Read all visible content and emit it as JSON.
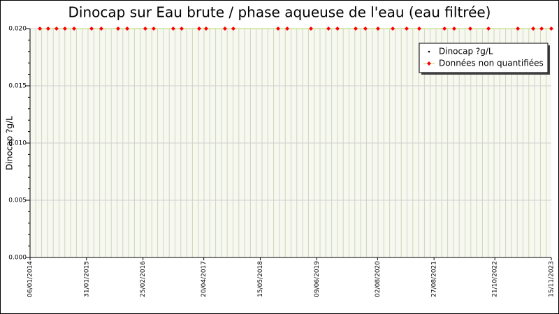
{
  "chart_data": {
    "type": "line",
    "title": "Dinocap sur Eau brute / phase aqueuse de l'eau (eau filtrée)",
    "y_label": "Dinocap ?g/L",
    "x": [
      "15/03/2014",
      "11/05/2014",
      "08/07/2014",
      "04/09/2014",
      "06/11/2014",
      "07/03/2015",
      "13/05/2015",
      "06/09/2015",
      "08/11/2015",
      "12/03/2016",
      "09/05/2016",
      "21/09/2016",
      "18/11/2016",
      "19/03/2017",
      "06/05/2017",
      "13/09/2017",
      "10/11/2017",
      "15/09/2018",
      "17/11/2018",
      "30/04/2019",
      "29/08/2019",
      "30/10/2019",
      "04/03/2020",
      "10/05/2020",
      "05/08/2020",
      "15/11/2020",
      "19/02/2021",
      "17/05/2021",
      "07/11/2021",
      "13/01/2022",
      "04/05/2022",
      "07/09/2022",
      "29/03/2023",
      "13/07/2023",
      "09/09/2023",
      "15/11/2023"
    ],
    "series": [
      {
        "name": "Dinocap ?g/L",
        "color": "#000000",
        "values": [
          null,
          null,
          null,
          null,
          null,
          null,
          null,
          null,
          null,
          null,
          null,
          null,
          null,
          null,
          null,
          null,
          null,
          null,
          null,
          null,
          null,
          null,
          null,
          null,
          null,
          null,
          null,
          null,
          null,
          null,
          null,
          null,
          null,
          null,
          null,
          null
        ]
      },
      {
        "name": "Données non quantifiées",
        "color": "#ff0000",
        "line_color": "#b5d96b",
        "values": [
          0.02,
          0.02,
          0.02,
          0.02,
          0.02,
          0.02,
          0.02,
          0.02,
          0.02,
          0.02,
          0.02,
          0.02,
          0.02,
          0.02,
          0.02,
          0.02,
          0.02,
          0.02,
          0.02,
          0.02,
          0.02,
          0.02,
          0.02,
          0.02,
          0.02,
          0.02,
          0.02,
          0.02,
          0.02,
          0.02,
          0.02,
          0.02,
          0.02,
          0.02,
          0.02,
          0.02
        ]
      }
    ],
    "xlim": [
      "06/01/2014",
      "15/11/2023"
    ],
    "xticks": [
      "06/01/2014",
      "31/01/2015",
      "25/02/2016",
      "20/04/2017",
      "15/05/2018",
      "09/06/2019",
      "02/08/2020",
      "27/08/2021",
      "21/10/2022",
      "15/11/2023"
    ],
    "ylim": [
      0,
      0.02
    ],
    "yticks": [
      {
        "value": 0,
        "label": "0.000"
      },
      {
        "value": 0.005,
        "label": "0.005"
      },
      {
        "value": 0.01,
        "label": "0.010"
      },
      {
        "value": 0.015,
        "label": "0.015"
      },
      {
        "value": 0.02,
        "label": "0.020"
      }
    ],
    "grid": true,
    "legend": "top right"
  }
}
